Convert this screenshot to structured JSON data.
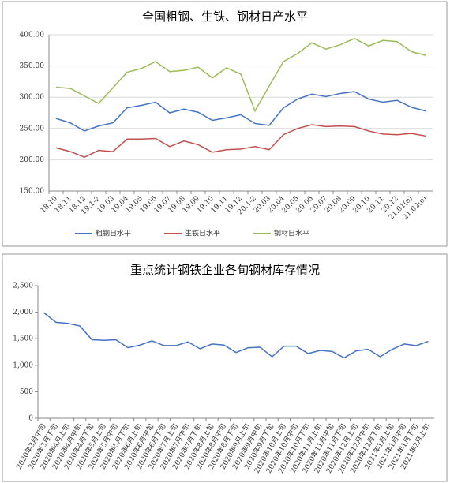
{
  "chart_data": [
    {
      "type": "line",
      "title": "全国粗钢、生铁、钢材日产水平",
      "categories": [
        "18.10",
        "18.11",
        "18.12",
        "19.1-2",
        "19.03",
        "19.04",
        "19.05",
        "19.06",
        "19.07",
        "19.08",
        "19.09",
        "19.10",
        "19.11",
        "19.12",
        "20.1-2",
        "20.03",
        "20.04",
        "20.05",
        "20.06",
        "20.07",
        "20.08",
        "20.09",
        "20.10",
        "20.11",
        "20.12",
        "21.01(e)",
        "21.02(e)"
      ],
      "series": [
        {
          "name": "粗钢日水平",
          "color": "#4472c4",
          "values": [
            266,
            259,
            246,
            254,
            259,
            283,
            287,
            292,
            275,
            281,
            276,
            263,
            267,
            272,
            258,
            255,
            283,
            297,
            305,
            301,
            306,
            309,
            297,
            292,
            295,
            284,
            278
          ]
        },
        {
          "name": "生铁日水平",
          "color": "#c0504d",
          "values": [
            219,
            213,
            204,
            215,
            213,
            233,
            233,
            234,
            221,
            230,
            224,
            212,
            216,
            217,
            221,
            216,
            240,
            250,
            256,
            253,
            254,
            253,
            246,
            241,
            240,
            242,
            238
          ]
        },
        {
          "name": "钢材日水平",
          "color": "#9bbb59",
          "values": [
            316,
            314,
            302,
            290,
            315,
            340,
            346,
            357,
            341,
            343,
            348,
            331,
            347,
            337,
            278,
            318,
            357,
            370,
            387,
            377,
            384,
            394,
            382,
            391,
            389,
            373,
            367
          ]
        }
      ],
      "ylim": [
        150,
        400
      ],
      "yticks": [
        {
          "value": 150,
          "label": "150.00"
        },
        {
          "value": 200,
          "label": "200.00"
        },
        {
          "value": 250,
          "label": "250.00"
        },
        {
          "value": 300,
          "label": "300.00"
        },
        {
          "value": 350,
          "label": "350.00"
        },
        {
          "value": 400,
          "label": "400.00"
        }
      ],
      "grid": true,
      "legend": "bottom"
    },
    {
      "type": "line",
      "title": "重点统计钢铁企业各旬钢材库存情况",
      "categories": [
        "2020年3月中旬",
        "2020年3月下旬",
        "2020年4月上旬",
        "2020年4月中旬",
        "2020年4月下旬",
        "2020年5月上旬",
        "2020年5月中旬",
        "2020年5月下旬",
        "2020年6月上旬",
        "2020年6月中旬",
        "2020年6月下旬",
        "2020年7月上旬",
        "2020年7月中旬",
        "2020年7月下旬",
        "2020年8月上旬",
        "2020年8月中旬",
        "2020年8月下旬",
        "2020年9月上旬",
        "2020年9月中旬",
        "2020年9月下旬",
        "2020年10月上旬",
        "2020年10月中旬",
        "2020年10月下旬",
        "2020年11月上旬",
        "2020年11月中旬",
        "2020年11月下旬",
        "2020年12月上旬",
        "2020年12月中旬",
        "2020年12月下旬",
        "2021年1月上旬",
        "2021年1月中旬",
        "2021年1月下旬",
        "2021年2月上旬"
      ],
      "color": "#4472c4",
      "values": [
        1990,
        1810,
        1790,
        1740,
        1480,
        1470,
        1480,
        1330,
        1380,
        1460,
        1370,
        1370,
        1440,
        1310,
        1400,
        1380,
        1240,
        1330,
        1340,
        1160,
        1360,
        1360,
        1220,
        1280,
        1260,
        1140,
        1270,
        1300,
        1160,
        1300,
        1400,
        1370,
        1450
      ],
      "ylim": [
        0,
        2500
      ],
      "yticks": [
        0,
        500,
        {
          "value": 1000,
          "label": "1,000"
        },
        {
          "value": 1500,
          "label": "1,500"
        },
        {
          "value": 2000,
          "label": "2,000"
        },
        {
          "value": 2500,
          "label": "2,500"
        }
      ],
      "grid": false
    }
  ]
}
